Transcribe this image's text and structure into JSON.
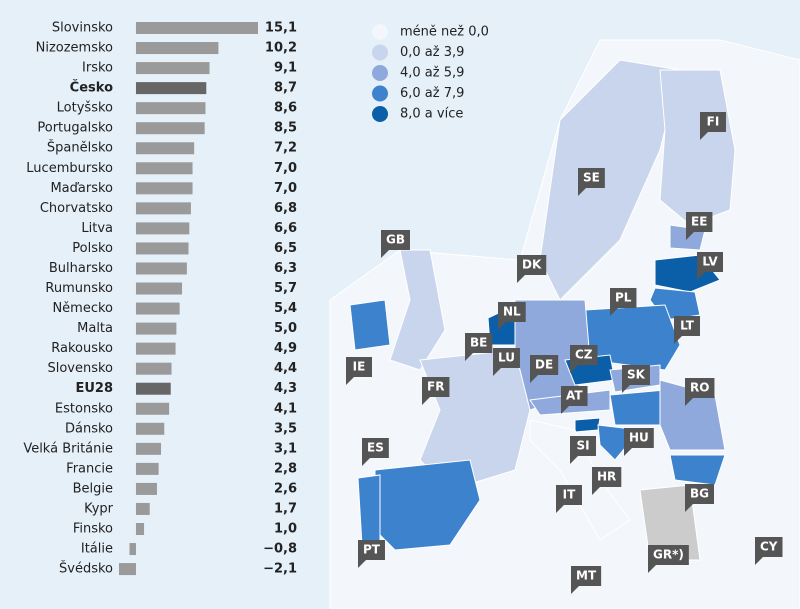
{
  "chart_data": {
    "type": "bar",
    "orientation": "horizontal",
    "categories": [
      "Slovinsko",
      "Nizozemsko",
      "Irsko",
      "Česko",
      "Lotyšsko",
      "Portugalsko",
      "Španělsko",
      "Lucembursko",
      "Maďarsko",
      "Chorvatsko",
      "Litva",
      "Polsko",
      "Bulharsko",
      "Rumunsko",
      "Německo",
      "Malta",
      "Rakousko",
      "Slovensko",
      "EU28",
      "Estonsko",
      "Dánsko",
      "Velká Británie",
      "Francie",
      "Belgie",
      "Kypr",
      "Finsko",
      "Itálie",
      "Švédsko"
    ],
    "values": [
      15.1,
      10.2,
      9.1,
      8.7,
      8.6,
      8.5,
      7.2,
      7.0,
      7.0,
      6.8,
      6.6,
      6.5,
      6.3,
      5.7,
      5.4,
      5.0,
      4.9,
      4.4,
      4.3,
      4.1,
      3.5,
      3.1,
      2.8,
      2.6,
      1.7,
      1.0,
      -0.8,
      -2.1
    ],
    "value_labels": [
      "15,1",
      "10,2",
      "9,1",
      "8,7",
      "8,6",
      "8,5",
      "7,2",
      "7,0",
      "7,0",
      "6,8",
      "6,6",
      "6,5",
      "6,3",
      "5,7",
      "5,4",
      "5,0",
      "4,9",
      "4,4",
      "4,3",
      "4,1",
      "3,5",
      "3,1",
      "2,8",
      "2,6",
      "1,7",
      "1,0",
      "−0,8",
      "−2,1"
    ],
    "color": "#9a9a9a",
    "bar_colors": [
      "#9a9a9a",
      "#9a9a9a",
      "#9a9a9a",
      "#666666",
      "#9a9a9a",
      "#9a9a9a",
      "#9a9a9a",
      "#9a9a9a",
      "#9a9a9a",
      "#9a9a9a",
      "#9a9a9a",
      "#9a9a9a",
      "#9a9a9a",
      "#9a9a9a",
      "#9a9a9a",
      "#9a9a9a",
      "#9a9a9a",
      "#9a9a9a",
      "#666666",
      "#9a9a9a",
      "#9a9a9a",
      "#9a9a9a",
      "#9a9a9a",
      "#9a9a9a",
      "#9a9a9a",
      "#9a9a9a",
      "#9a9a9a",
      "#9a9a9a"
    ],
    "xlim": [
      -2.1,
      15.1
    ]
  },
  "map": {
    "legend": [
      {
        "label": "méně než 0,0",
        "color": "#f3f7fc"
      },
      {
        "label": "0,0 až 3,9",
        "color": "#c9d5ec"
      },
      {
        "label": "4,0 až 5,9",
        "color": "#8fa9dc"
      },
      {
        "label": "6,0 až 7,9",
        "color": "#3d82cc"
      },
      {
        "label": "8,0 a více",
        "color": "#0b5fa8"
      }
    ],
    "countries": [
      "GB",
      "SE",
      "FI",
      "EE",
      "LV",
      "DK",
      "NL",
      "PL",
      "LT",
      "BE",
      "LU",
      "DE",
      "CZ",
      "SK",
      "IE",
      "FR",
      "AT",
      "RO",
      "HU",
      "SI",
      "HR",
      "ES",
      "BG",
      "IT",
      "PT",
      "GR*)",
      "CY",
      "MT"
    ]
  }
}
